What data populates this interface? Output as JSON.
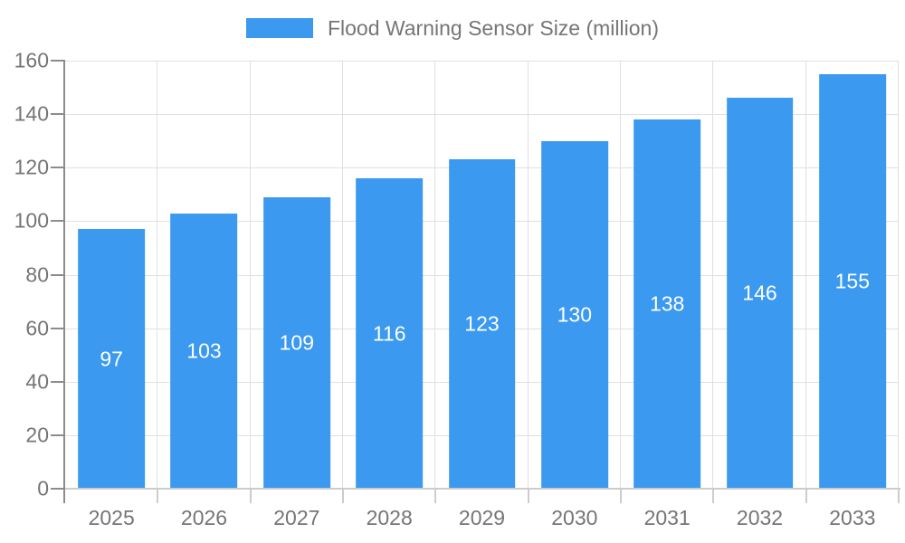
{
  "chart_data": {
    "type": "bar",
    "title": "Flood Warning Sensor Size (million)",
    "categories": [
      "2025",
      "2026",
      "2027",
      "2028",
      "2029",
      "2030",
      "2031",
      "2032",
      "2033"
    ],
    "values": [
      97,
      103,
      109,
      116,
      123,
      130,
      138,
      146,
      155
    ],
    "xlabel": "",
    "ylabel": "",
    "ylim": [
      0,
      160
    ],
    "yticks": [
      0,
      20,
      40,
      60,
      80,
      100,
      120,
      140,
      160
    ],
    "grid": true,
    "legend_position": "top-center",
    "value_labels": "inside-center-white",
    "bar_width_fraction": 0.72
  },
  "colors": {
    "bar": "#3B99F0",
    "grid": "#E0E0E0",
    "axis": "#8C8C8C",
    "axis_light": "#CCCCCC",
    "text": "#757575",
    "value_label": "#FFFFFF",
    "background": "#FFFFFF"
  }
}
